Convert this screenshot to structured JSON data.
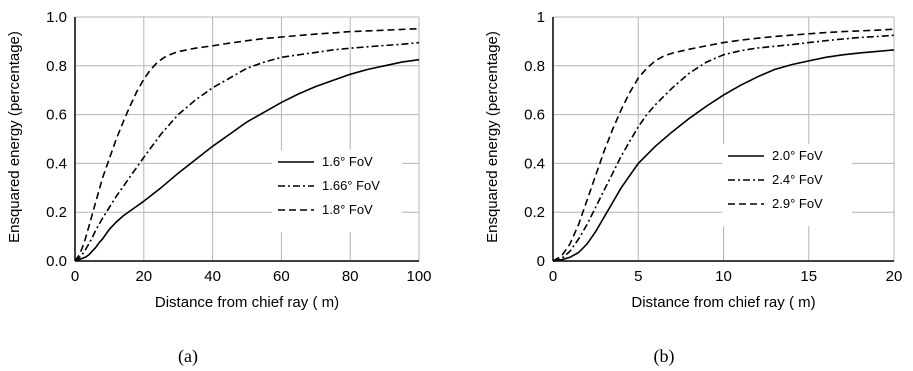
{
  "chart_data": [
    {
      "type": "line",
      "caption": "(a)",
      "xlabel": "Distance from chief ray (   m)",
      "ylabel": "Ensquared energy (percentage)",
      "xlim": [
        0,
        100
      ],
      "ylim": [
        0,
        1.0
      ],
      "x_ticks": [
        "0",
        "20",
        "40",
        "60",
        "80",
        "100"
      ],
      "y_ticks": [
        "0.0",
        "0.2",
        "0.4",
        "0.6",
        "0.8",
        "1.0"
      ],
      "grid": true,
      "legend_position": "center-right",
      "series": [
        {
          "name": "1.6° FoV",
          "dash": "solid",
          "x": [
            0,
            1,
            2,
            3,
            4,
            5,
            6,
            7,
            8,
            10,
            12,
            14,
            16,
            18,
            20,
            25,
            30,
            35,
            40,
            45,
            50,
            55,
            60,
            65,
            70,
            75,
            80,
            85,
            90,
            95,
            100
          ],
          "y": [
            0,
            0.005,
            0.01,
            0.015,
            0.025,
            0.04,
            0.055,
            0.075,
            0.09,
            0.13,
            0.16,
            0.185,
            0.205,
            0.225,
            0.245,
            0.3,
            0.36,
            0.415,
            0.47,
            0.52,
            0.57,
            0.61,
            0.65,
            0.685,
            0.715,
            0.74,
            0.765,
            0.785,
            0.8,
            0.815,
            0.825
          ]
        },
        {
          "name": "1.66° FoV",
          "dash": "dash-dot",
          "x": [
            0,
            1,
            2,
            3,
            4,
            5,
            6,
            8,
            10,
            12,
            14,
            16,
            18,
            20,
            25,
            30,
            35,
            40,
            45,
            50,
            55,
            60,
            65,
            70,
            75,
            80,
            85,
            90,
            95,
            100
          ],
          "y": [
            0,
            0.01,
            0.025,
            0.045,
            0.07,
            0.095,
            0.125,
            0.175,
            0.22,
            0.265,
            0.305,
            0.345,
            0.385,
            0.425,
            0.52,
            0.6,
            0.66,
            0.71,
            0.75,
            0.79,
            0.815,
            0.835,
            0.845,
            0.855,
            0.865,
            0.872,
            0.878,
            0.883,
            0.888,
            0.895
          ]
        },
        {
          "name": "1.8° FoV",
          "dash": "dashed",
          "x": [
            0,
            1,
            2,
            3,
            4,
            5,
            6,
            7,
            8,
            10,
            12,
            14,
            16,
            18,
            20,
            22,
            24,
            26,
            28,
            30,
            35,
            40,
            45,
            50,
            55,
            60,
            65,
            70,
            75,
            80,
            85,
            90,
            95,
            100
          ],
          "y": [
            0,
            0.02,
            0.05,
            0.09,
            0.14,
            0.19,
            0.24,
            0.29,
            0.34,
            0.42,
            0.5,
            0.57,
            0.635,
            0.695,
            0.745,
            0.785,
            0.815,
            0.835,
            0.848,
            0.858,
            0.872,
            0.882,
            0.893,
            0.903,
            0.912,
            0.918,
            0.924,
            0.93,
            0.935,
            0.94,
            0.943,
            0.946,
            0.949,
            0.952
          ]
        }
      ]
    },
    {
      "type": "line",
      "caption": "(b)",
      "xlabel": "Distance from chief ray (   m)",
      "ylabel": "Ensquared energy (percentage)",
      "xlim": [
        0,
        20
      ],
      "ylim": [
        0,
        1
      ],
      "x_ticks": [
        "0",
        "5",
        "10",
        "15",
        "20"
      ],
      "y_ticks": [
        "0",
        "0.2",
        "0.4",
        "0.6",
        "0.8",
        "1"
      ],
      "grid": true,
      "legend_position": "center-right",
      "series": [
        {
          "name": "2.0° FoV",
          "dash": "solid",
          "x": [
            0,
            0.5,
            1,
            1.5,
            2,
            2.5,
            3,
            3.5,
            4,
            4.5,
            5,
            6,
            7,
            8,
            9,
            10,
            11,
            12,
            13,
            14,
            15,
            16,
            17,
            18,
            19,
            20
          ],
          "y": [
            0,
            0.005,
            0.015,
            0.035,
            0.07,
            0.12,
            0.18,
            0.24,
            0.3,
            0.35,
            0.4,
            0.47,
            0.53,
            0.585,
            0.635,
            0.68,
            0.72,
            0.755,
            0.785,
            0.805,
            0.82,
            0.835,
            0.845,
            0.853,
            0.859,
            0.865
          ]
        },
        {
          "name": "2.4° FoV",
          "dash": "dash-dot",
          "x": [
            0,
            0.5,
            1,
            1.5,
            2,
            2.5,
            3,
            3.5,
            4,
            4.5,
            5,
            5.5,
            6,
            7,
            8,
            9,
            10,
            11,
            12,
            13,
            14,
            15,
            16,
            17,
            18,
            19,
            20
          ],
          "y": [
            0,
            0.01,
            0.04,
            0.09,
            0.15,
            0.22,
            0.29,
            0.36,
            0.43,
            0.49,
            0.55,
            0.6,
            0.64,
            0.71,
            0.77,
            0.815,
            0.845,
            0.862,
            0.873,
            0.88,
            0.887,
            0.895,
            0.903,
            0.91,
            0.916,
            0.92,
            0.925
          ]
        },
        {
          "name": "2.9° FoV",
          "dash": "dashed",
          "x": [
            0,
            0.5,
            1,
            1.5,
            2,
            2.5,
            3,
            3.5,
            4,
            4.5,
            5,
            5.5,
            6,
            6.5,
            7,
            8,
            9,
            10,
            11,
            12,
            13,
            14,
            15,
            16,
            17,
            18,
            19,
            20
          ],
          "y": [
            0,
            0.02,
            0.07,
            0.15,
            0.25,
            0.35,
            0.45,
            0.54,
            0.62,
            0.69,
            0.75,
            0.79,
            0.82,
            0.84,
            0.852,
            0.868,
            0.882,
            0.895,
            0.905,
            0.913,
            0.92,
            0.926,
            0.931,
            0.936,
            0.94,
            0.943,
            0.946,
            0.95
          ]
        }
      ]
    }
  ]
}
